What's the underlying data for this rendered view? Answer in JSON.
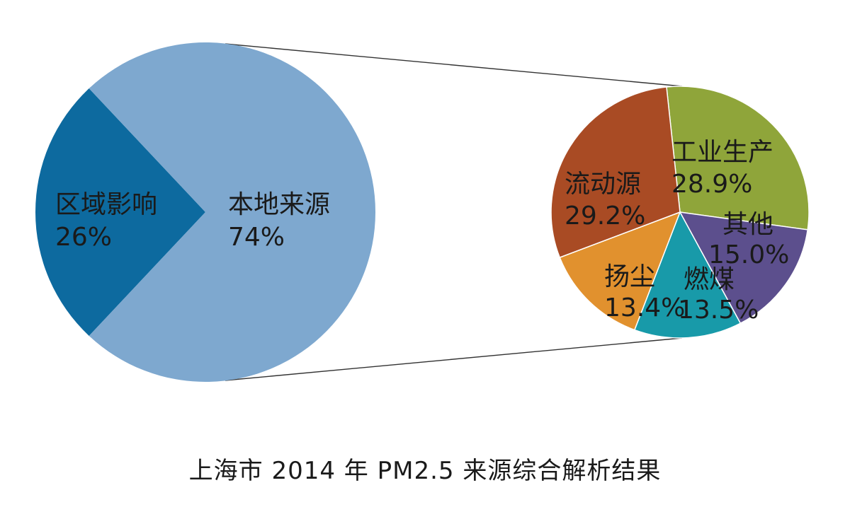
{
  "chart_data": [
    {
      "type": "pie",
      "name": "main",
      "slices": [
        {
          "label": "区域影响",
          "value_text": "26%",
          "value": 26,
          "color": "#0d6a9f"
        },
        {
          "label": "本地来源",
          "value_text": "74%",
          "value": 74,
          "color": "#7ea8cf"
        }
      ]
    },
    {
      "type": "pie",
      "name": "breakdown-of-本地来源",
      "slices": [
        {
          "label": "工业生产",
          "value_text": "28.9%",
          "value": 28.9,
          "color": "#8fa53a"
        },
        {
          "label": "其他",
          "value_text": "15.0%",
          "value": 15.0,
          "color": "#5c4f8d"
        },
        {
          "label": "燃煤",
          "value_text": "13.5%",
          "value": 13.5,
          "color": "#189aa9"
        },
        {
          "label": "扬尘",
          "value_text": "13.4%",
          "value": 13.4,
          "color": "#e1912e"
        },
        {
          "label": "流动源",
          "value_text": "29.2%",
          "value": 29.2,
          "color": "#a94b24"
        }
      ]
    }
  ],
  "caption": "上海市 2014 年 PM2.5 来源综合解析结果"
}
